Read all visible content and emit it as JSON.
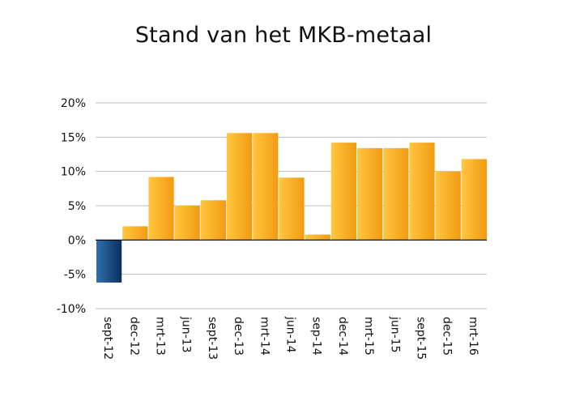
{
  "chart_data": {
    "type": "bar",
    "title": "Stand van het MKB-metaal",
    "xlabel": "",
    "ylabel": "",
    "categories": [
      "sept-12",
      "dec-12",
      "mrt-13",
      "jun-13",
      "sept-13",
      "dec-13",
      "mrt-14",
      "jun-14",
      "sep-14",
      "dec-14",
      "mrt-15",
      "jun-15",
      "sept-15",
      "dec-15",
      "mrt-16"
    ],
    "values": [
      -6.2,
      2.0,
      9.2,
      5.0,
      5.8,
      15.6,
      15.6,
      9.1,
      0.8,
      14.2,
      13.4,
      13.4,
      14.2,
      10.0,
      11.8
    ],
    "ylim": [
      -10,
      20
    ],
    "yticks": [
      -10,
      -5,
      0,
      5,
      10,
      15,
      20
    ],
    "ytick_labels": [
      "-10%",
      "-5%",
      "0%",
      "5%",
      "10%",
      "15%",
      "20%"
    ],
    "grid": true,
    "legend": "none",
    "colors": {
      "positive_light": "#ffc640",
      "positive_dark": "#f39a12",
      "negative_light": "#2f6fb0",
      "negative_dark": "#0b2f5c",
      "gridline": "#bfbfbf",
      "zero_line": "#000000"
    }
  }
}
